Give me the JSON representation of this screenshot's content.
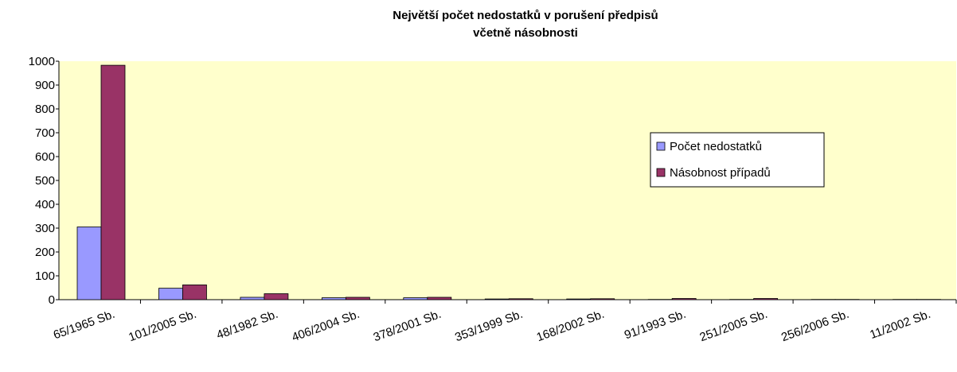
{
  "chart_data": {
    "type": "bar",
    "title_lines": [
      "Největší počet nedostatků v porušení předpisů",
      "včetně násobnosti"
    ],
    "categories": [
      "65/1965 Sb.",
      "101/2005 Sb.",
      "48/1982 Sb.",
      "406/2004 Sb.",
      "378/2001 Sb.",
      "353/1999 Sb.",
      "168/2002 Sb.",
      "91/1993 Sb.",
      "251/2005 Sb.",
      "256/2006 Sb.",
      "11/2002 Sb."
    ],
    "series": [
      {
        "name": "Počet nedostatků",
        "color": "#9999ff",
        "values": [
          305,
          48,
          10,
          8,
          8,
          3,
          3,
          1,
          1,
          1,
          1
        ]
      },
      {
        "name": "Násobnost případů",
        "color": "#993366",
        "values": [
          983,
          62,
          25,
          10,
          10,
          4,
          4,
          5,
          5,
          1,
          1
        ]
      }
    ],
    "ylim": [
      0,
      1000
    ],
    "yticks": [
      0,
      100,
      200,
      300,
      400,
      500,
      600,
      700,
      800,
      900,
      1000
    ],
    "plot_background": "#ffffcc",
    "legend": "right"
  }
}
